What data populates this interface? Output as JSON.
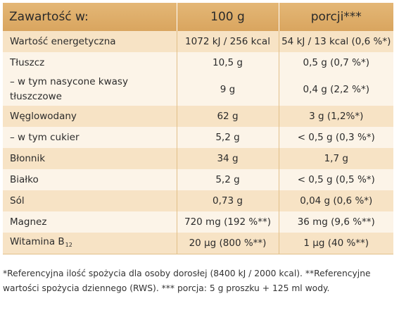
{
  "header": {
    "label": "Zawartość w:",
    "col_100g": "100 g",
    "col_portion": "porcji***"
  },
  "rows": [
    {
      "label": "Wartość energetyczna",
      "per100": "1072 kJ / 256 kcal",
      "portion": "54 kJ / 13 kcal (0,6 %*)"
    },
    {
      "label": "Tłuszcz",
      "per100": "10,5 g",
      "portion": "0,5 g (0,7 %*)"
    },
    {
      "label": "– w tym nasycone kwasy tłuszczowe",
      "per100": "9 g",
      "portion": "0,4 g (2,2 %*)"
    },
    {
      "label": "Węglowodany",
      "per100": "62 g",
      "portion": "3 g (1,2%*)"
    },
    {
      "label": "– w tym cukier",
      "per100": "5,2 g",
      "portion": "< 0,5 g (0,3 %*)"
    },
    {
      "label": "Błonnik",
      "per100": "34 g",
      "portion": "1,7 g"
    },
    {
      "label": "Białko",
      "per100": "5,2 g",
      "portion": "< 0,5 g (0,5 %*)"
    },
    {
      "label": "Sól",
      "per100": "0,73 g",
      "portion": "0,04 g (0,6 %*)"
    },
    {
      "label": "Magnez",
      "per100": "720 mg (192 %**)",
      "portion": "36 mg (9,6 %**)"
    },
    {
      "label": "Witamina B",
      "label_sub": "12",
      "per100": "20 µg (800 %**)",
      "portion": "1 µg (40 %**)"
    }
  ],
  "footnote": "*Referencyjna ilość spożycia dla osoby dorosłej (8400 kJ / 2000 kcal). **Referencyjne wartości spożycia dziennego (RWS). *** porcja: 5 g proszku + 125 ml wody.",
  "colors": {
    "header": "#d9a55f",
    "row_odd": "#f7e3c5",
    "row_even": "#fcf4e8"
  }
}
